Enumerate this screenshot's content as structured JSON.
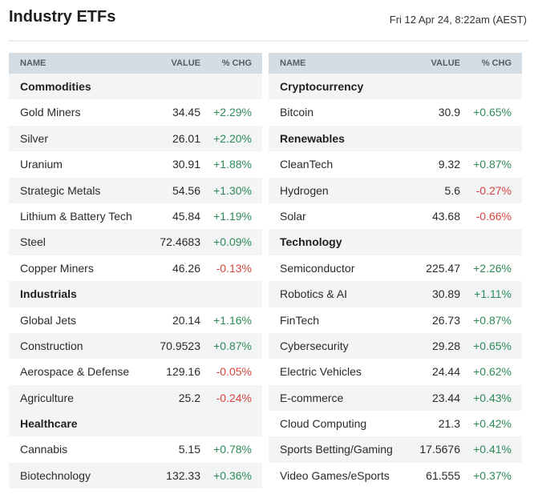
{
  "header": {
    "title": "Industry ETFs",
    "timestamp": "Fri 12 Apr 24, 8:22am (AEST)"
  },
  "columns": {
    "name": "NAME",
    "value": "VALUE",
    "chg": "% CHG"
  },
  "colors": {
    "positive": "#2e8b57",
    "negative": "#d6453d",
    "header_bg": "#d4dde3",
    "row_alt_bg": "#f2f4f5"
  },
  "left_panel": [
    {
      "type": "group",
      "name": "Commodities"
    },
    {
      "type": "item",
      "name": "Gold Miners",
      "value": "34.45",
      "chg": "+2.29%"
    },
    {
      "type": "item",
      "name": "Silver",
      "value": "26.01",
      "chg": "+2.20%"
    },
    {
      "type": "item",
      "name": "Uranium",
      "value": "30.91",
      "chg": "+1.88%"
    },
    {
      "type": "item",
      "name": "Strategic Metals",
      "value": "54.56",
      "chg": "+1.30%"
    },
    {
      "type": "item",
      "name": "Lithium & Battery Tech",
      "value": "45.84",
      "chg": "+1.19%"
    },
    {
      "type": "item",
      "name": "Steel",
      "value": "72.4683",
      "chg": "+0.09%"
    },
    {
      "type": "item",
      "name": "Copper Miners",
      "value": "46.26",
      "chg": "-0.13%"
    },
    {
      "type": "group",
      "name": "Industrials"
    },
    {
      "type": "item",
      "name": "Global Jets",
      "value": "20.14",
      "chg": "+1.16%"
    },
    {
      "type": "item",
      "name": "Construction",
      "value": "70.9523",
      "chg": "+0.87%"
    },
    {
      "type": "item",
      "name": "Aerospace & Defense",
      "value": "129.16",
      "chg": "-0.05%"
    },
    {
      "type": "item",
      "name": "Agriculture",
      "value": "25.2",
      "chg": "-0.24%"
    },
    {
      "type": "group",
      "name": "Healthcare"
    },
    {
      "type": "item",
      "name": "Cannabis",
      "value": "5.15",
      "chg": "+0.78%"
    },
    {
      "type": "item",
      "name": "Biotechnology",
      "value": "132.33",
      "chg": "+0.36%"
    }
  ],
  "right_panel": [
    {
      "type": "group",
      "name": "Cryptocurrency"
    },
    {
      "type": "item",
      "name": "Bitcoin",
      "value": "30.9",
      "chg": "+0.65%"
    },
    {
      "type": "group",
      "name": "Renewables"
    },
    {
      "type": "item",
      "name": "CleanTech",
      "value": "9.32",
      "chg": "+0.87%"
    },
    {
      "type": "item",
      "name": "Hydrogen",
      "value": "5.6",
      "chg": "-0.27%"
    },
    {
      "type": "item",
      "name": "Solar",
      "value": "43.68",
      "chg": "-0.66%"
    },
    {
      "type": "group",
      "name": "Technology"
    },
    {
      "type": "item",
      "name": "Semiconductor",
      "value": "225.47",
      "chg": "+2.26%"
    },
    {
      "type": "item",
      "name": "Robotics & AI",
      "value": "30.89",
      "chg": "+1.11%"
    },
    {
      "type": "item",
      "name": "FinTech",
      "value": "26.73",
      "chg": "+0.87%"
    },
    {
      "type": "item",
      "name": "Cybersecurity",
      "value": "29.28",
      "chg": "+0.65%"
    },
    {
      "type": "item",
      "name": "Electric Vehicles",
      "value": "24.44",
      "chg": "+0.62%"
    },
    {
      "type": "item",
      "name": "E-commerce",
      "value": "23.44",
      "chg": "+0.43%"
    },
    {
      "type": "item",
      "name": "Cloud Computing",
      "value": "21.3",
      "chg": "+0.42%"
    },
    {
      "type": "item",
      "name": "Sports Betting/Gaming",
      "value": "17.5676",
      "chg": "+0.41%"
    },
    {
      "type": "item",
      "name": "Video Games/eSports",
      "value": "61.555",
      "chg": "+0.37%"
    }
  ]
}
